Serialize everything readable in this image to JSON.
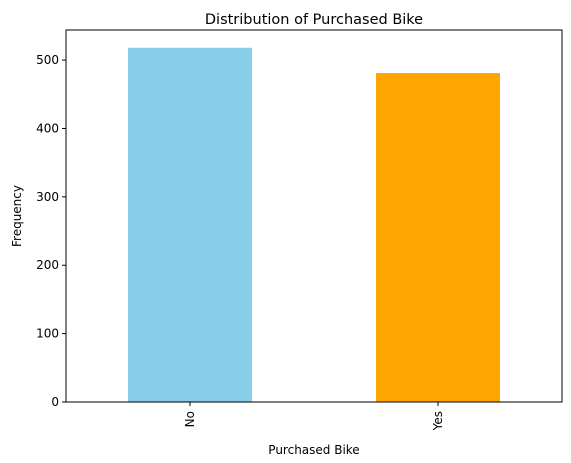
{
  "chart_data": {
    "type": "bar",
    "title": "Distribution of Purchased Bike",
    "xlabel": "Purchased Bike",
    "ylabel": "Frequency",
    "categories": [
      "No",
      "Yes"
    ],
    "values": [
      518,
      481
    ],
    "colors": [
      "#87CEEB",
      "#FFA500"
    ],
    "ylim": [
      0,
      544
    ],
    "yticks": [
      0,
      100,
      200,
      300,
      400,
      500
    ],
    "grid": false,
    "legend": "none",
    "xtick_rotation": "vertical"
  }
}
